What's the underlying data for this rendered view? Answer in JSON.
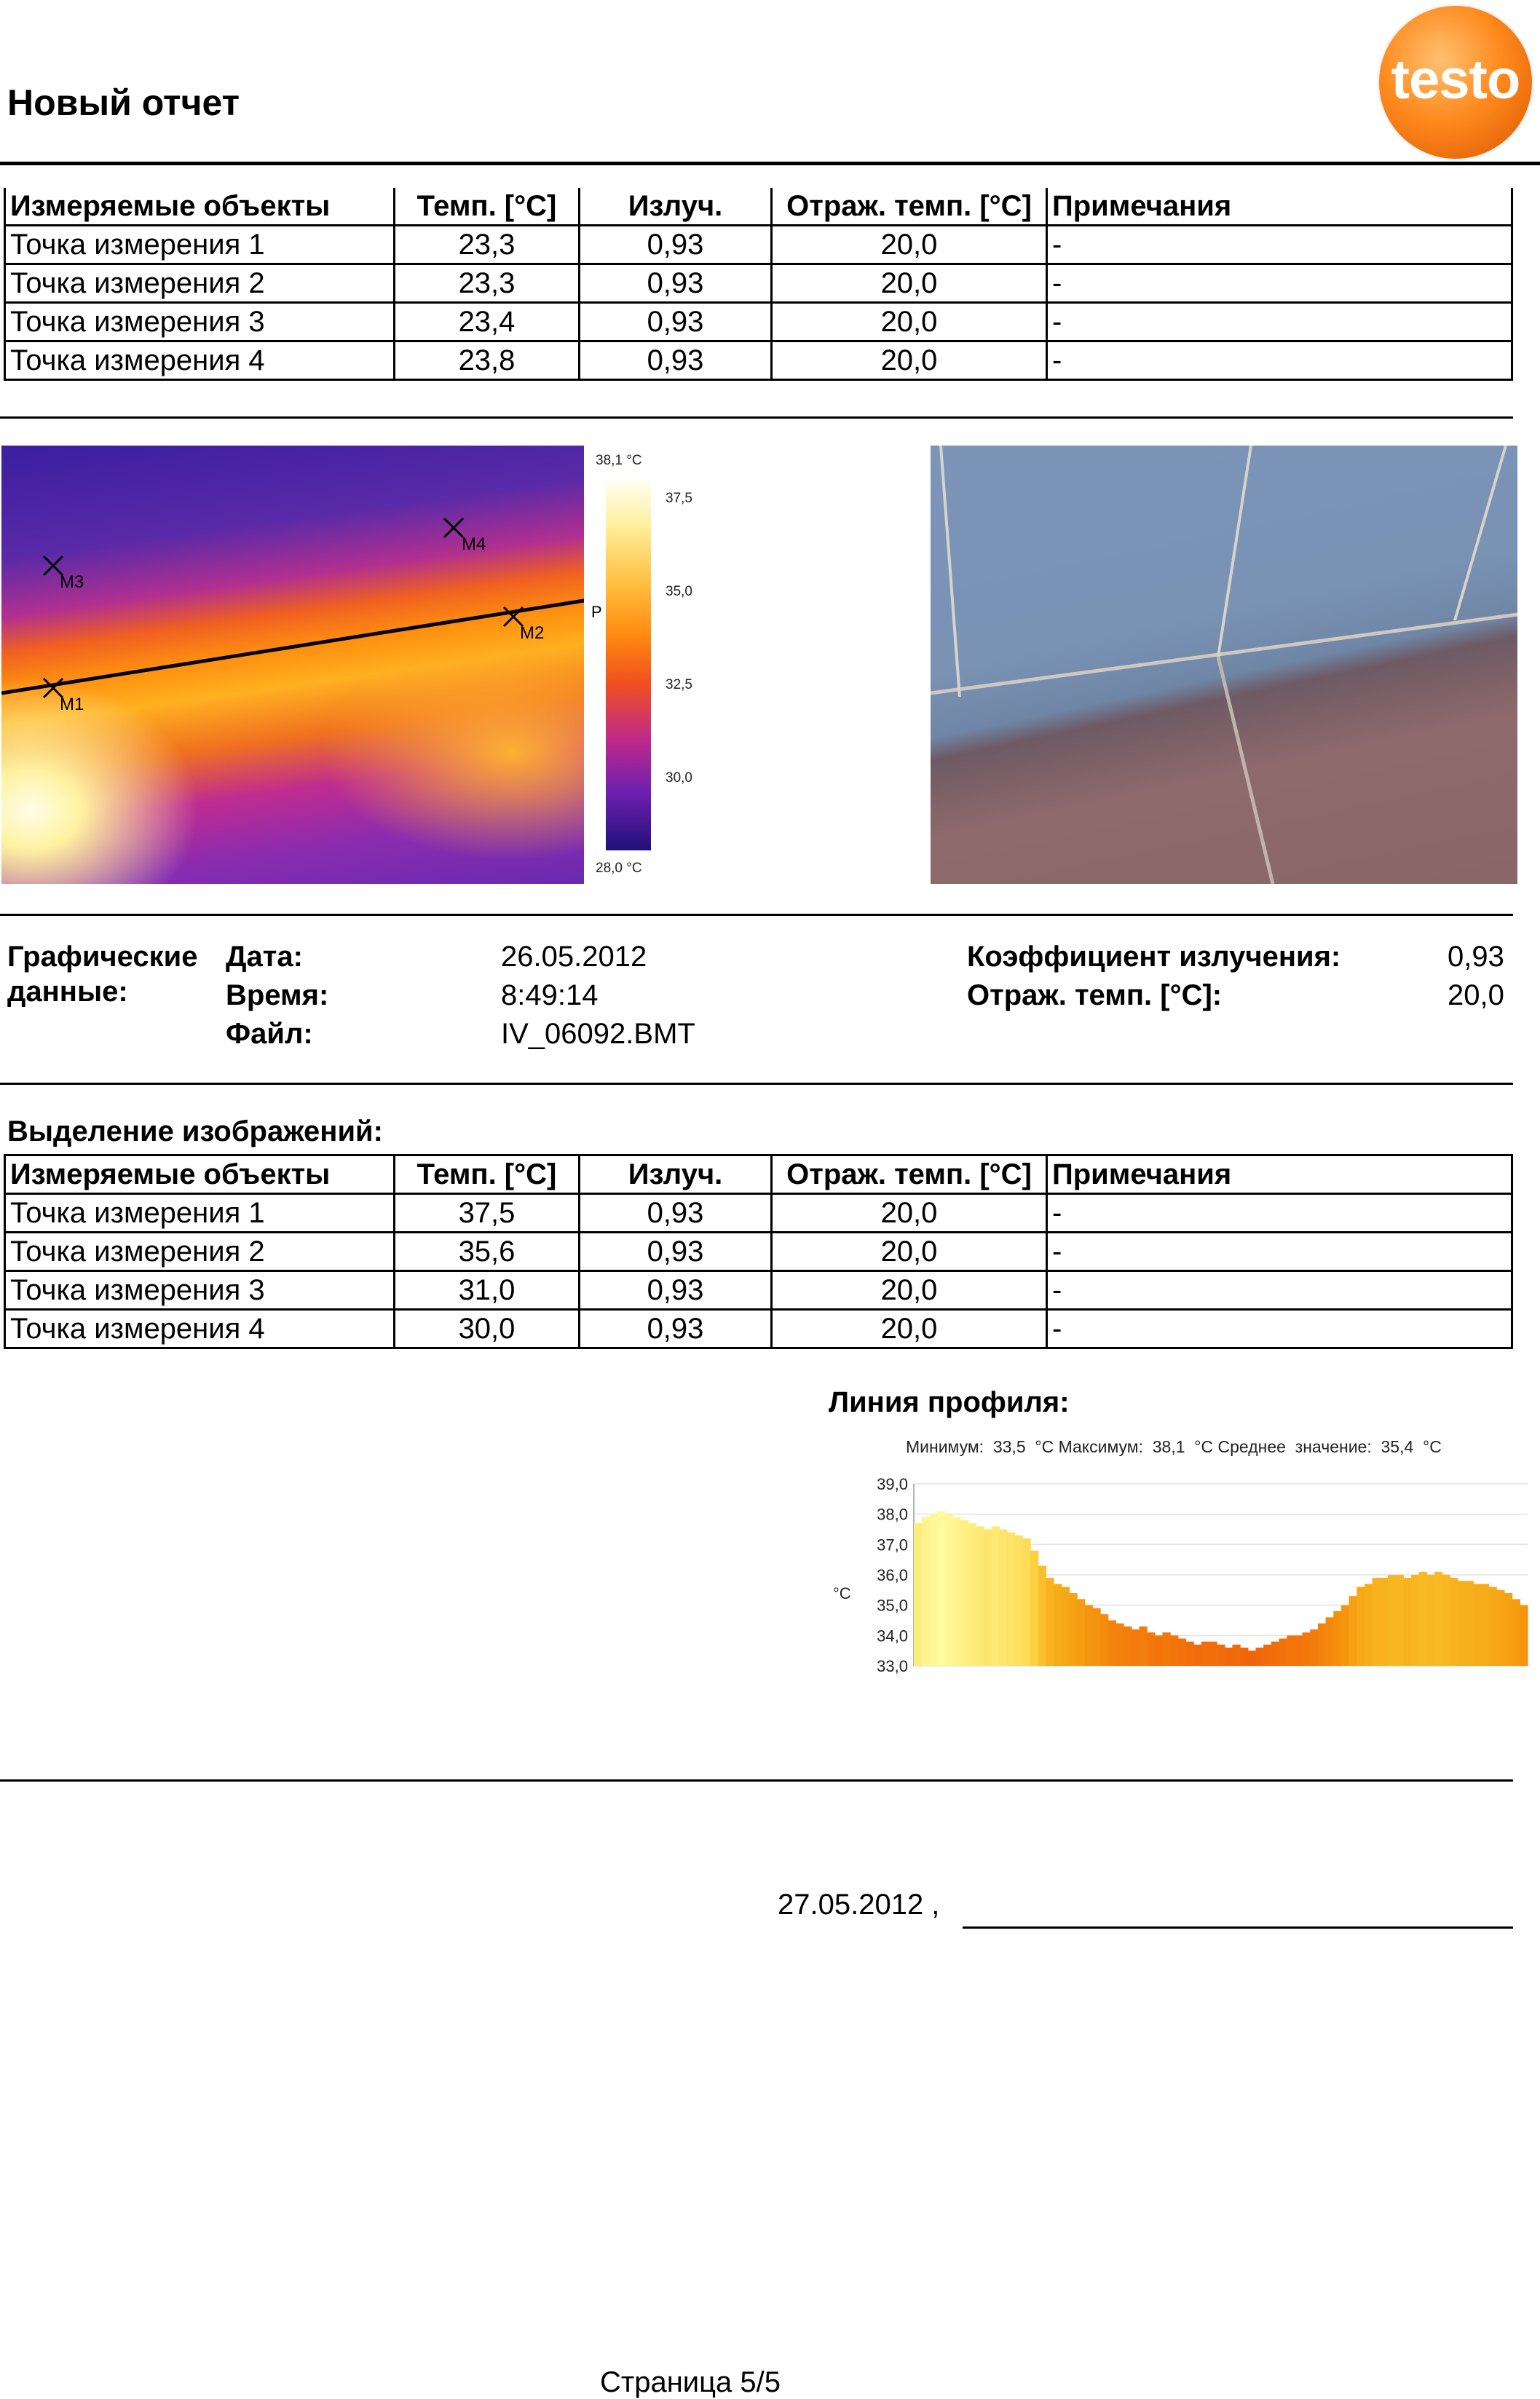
{
  "report": {
    "title": "Новый отчет",
    "logo": "testo",
    "page": "Страница 5/5",
    "signature_date": "27.05.2012 ,"
  },
  "table_headers": {
    "object": "Измеряемые объекты",
    "temp": "Темп. [°C]",
    "emiss": "Излуч.",
    "refl": "Отраж. темп. [°C]",
    "notes": "Примечания"
  },
  "table1": {
    "rows": [
      {
        "name": "Точка измерения 1",
        "temp": "23,3",
        "emiss": "0,93",
        "refl": "20,0",
        "note": "-"
      },
      {
        "name": "Точка измерения 2",
        "temp": "23,3",
        "emiss": "0,93",
        "refl": "20,0",
        "note": "-"
      },
      {
        "name": "Точка измерения 3",
        "temp": "23,4",
        "emiss": "0,93",
        "refl": "20,0",
        "note": "-"
      },
      {
        "name": "Точка измерения 4",
        "temp": "23,8",
        "emiss": "0,93",
        "refl": "20,0",
        "note": "-"
      }
    ]
  },
  "thermal_image": {
    "markers": [
      "M1",
      "M2",
      "M3",
      "M4",
      "P"
    ],
    "scale_max": "38,1 °C",
    "scale_min": "28,0 °C",
    "scale_ticks": [
      "37,5",
      "35,0",
      "32,5",
      "30,0"
    ]
  },
  "image_info": {
    "section_label_1": "Графические",
    "section_label_2": "данные:",
    "date_label": "Дата:",
    "date_value": "26.05.2012",
    "time_label": "Время:",
    "time_value": "8:49:14",
    "file_label": "Файл:",
    "file_value": "IV_06092.BMT",
    "emissivity_label": "Коэффициент излучения:",
    "emissivity_value": "0,93",
    "refl_label": "Отраж. темп. [°C]:",
    "refl_value": "20,0"
  },
  "table2": {
    "title": "Выделение изображений:",
    "rows": [
      {
        "name": "Точка измерения 1",
        "temp": "37,5",
        "emiss": "0,93",
        "refl": "20,0",
        "note": "-"
      },
      {
        "name": "Точка измерения 2",
        "temp": "35,6",
        "emiss": "0,93",
        "refl": "20,0",
        "note": "-"
      },
      {
        "name": "Точка измерения 3",
        "temp": "31,0",
        "emiss": "0,93",
        "refl": "20,0",
        "note": "-"
      },
      {
        "name": "Точка измерения 4",
        "temp": "30,0",
        "emiss": "0,93",
        "refl": "20,0",
        "note": "-"
      }
    ]
  },
  "profile": {
    "heading": "Линия профиля:",
    "summary": "Минимум:  33,5  °C Максимум:  38,1  °C Среднее  значение:  35,4  °C"
  },
  "chart_data": {
    "type": "bar",
    "ylabel": "°C",
    "ylim": [
      33.0,
      39.0
    ],
    "yticks": [
      "39,0",
      "38,0",
      "37,0",
      "36,0",
      "35,0",
      "34,0",
      "33,0"
    ],
    "values": [
      37.7,
      37.9,
      38.0,
      38.1,
      38.0,
      37.9,
      37.8,
      37.7,
      37.6,
      37.5,
      37.6,
      37.5,
      37.4,
      37.3,
      37.2,
      36.8,
      36.3,
      35.9,
      35.7,
      35.6,
      35.4,
      35.2,
      35.0,
      34.9,
      34.7,
      34.5,
      34.4,
      34.3,
      34.2,
      34.3,
      34.1,
      34.0,
      34.1,
      34.0,
      33.9,
      33.8,
      33.7,
      33.8,
      33.8,
      33.7,
      33.6,
      33.7,
      33.6,
      33.5,
      33.6,
      33.7,
      33.8,
      33.9,
      34.0,
      34.0,
      34.1,
      34.2,
      34.4,
      34.6,
      34.8,
      35.0,
      35.3,
      35.6,
      35.7,
      35.9,
      35.9,
      36.0,
      36.0,
      35.9,
      36.0,
      36.1,
      36.0,
      36.1,
      36.0,
      35.9,
      35.8,
      35.8,
      35.7,
      35.7,
      35.6,
      35.5,
      35.4,
      35.2,
      35.0
    ]
  }
}
